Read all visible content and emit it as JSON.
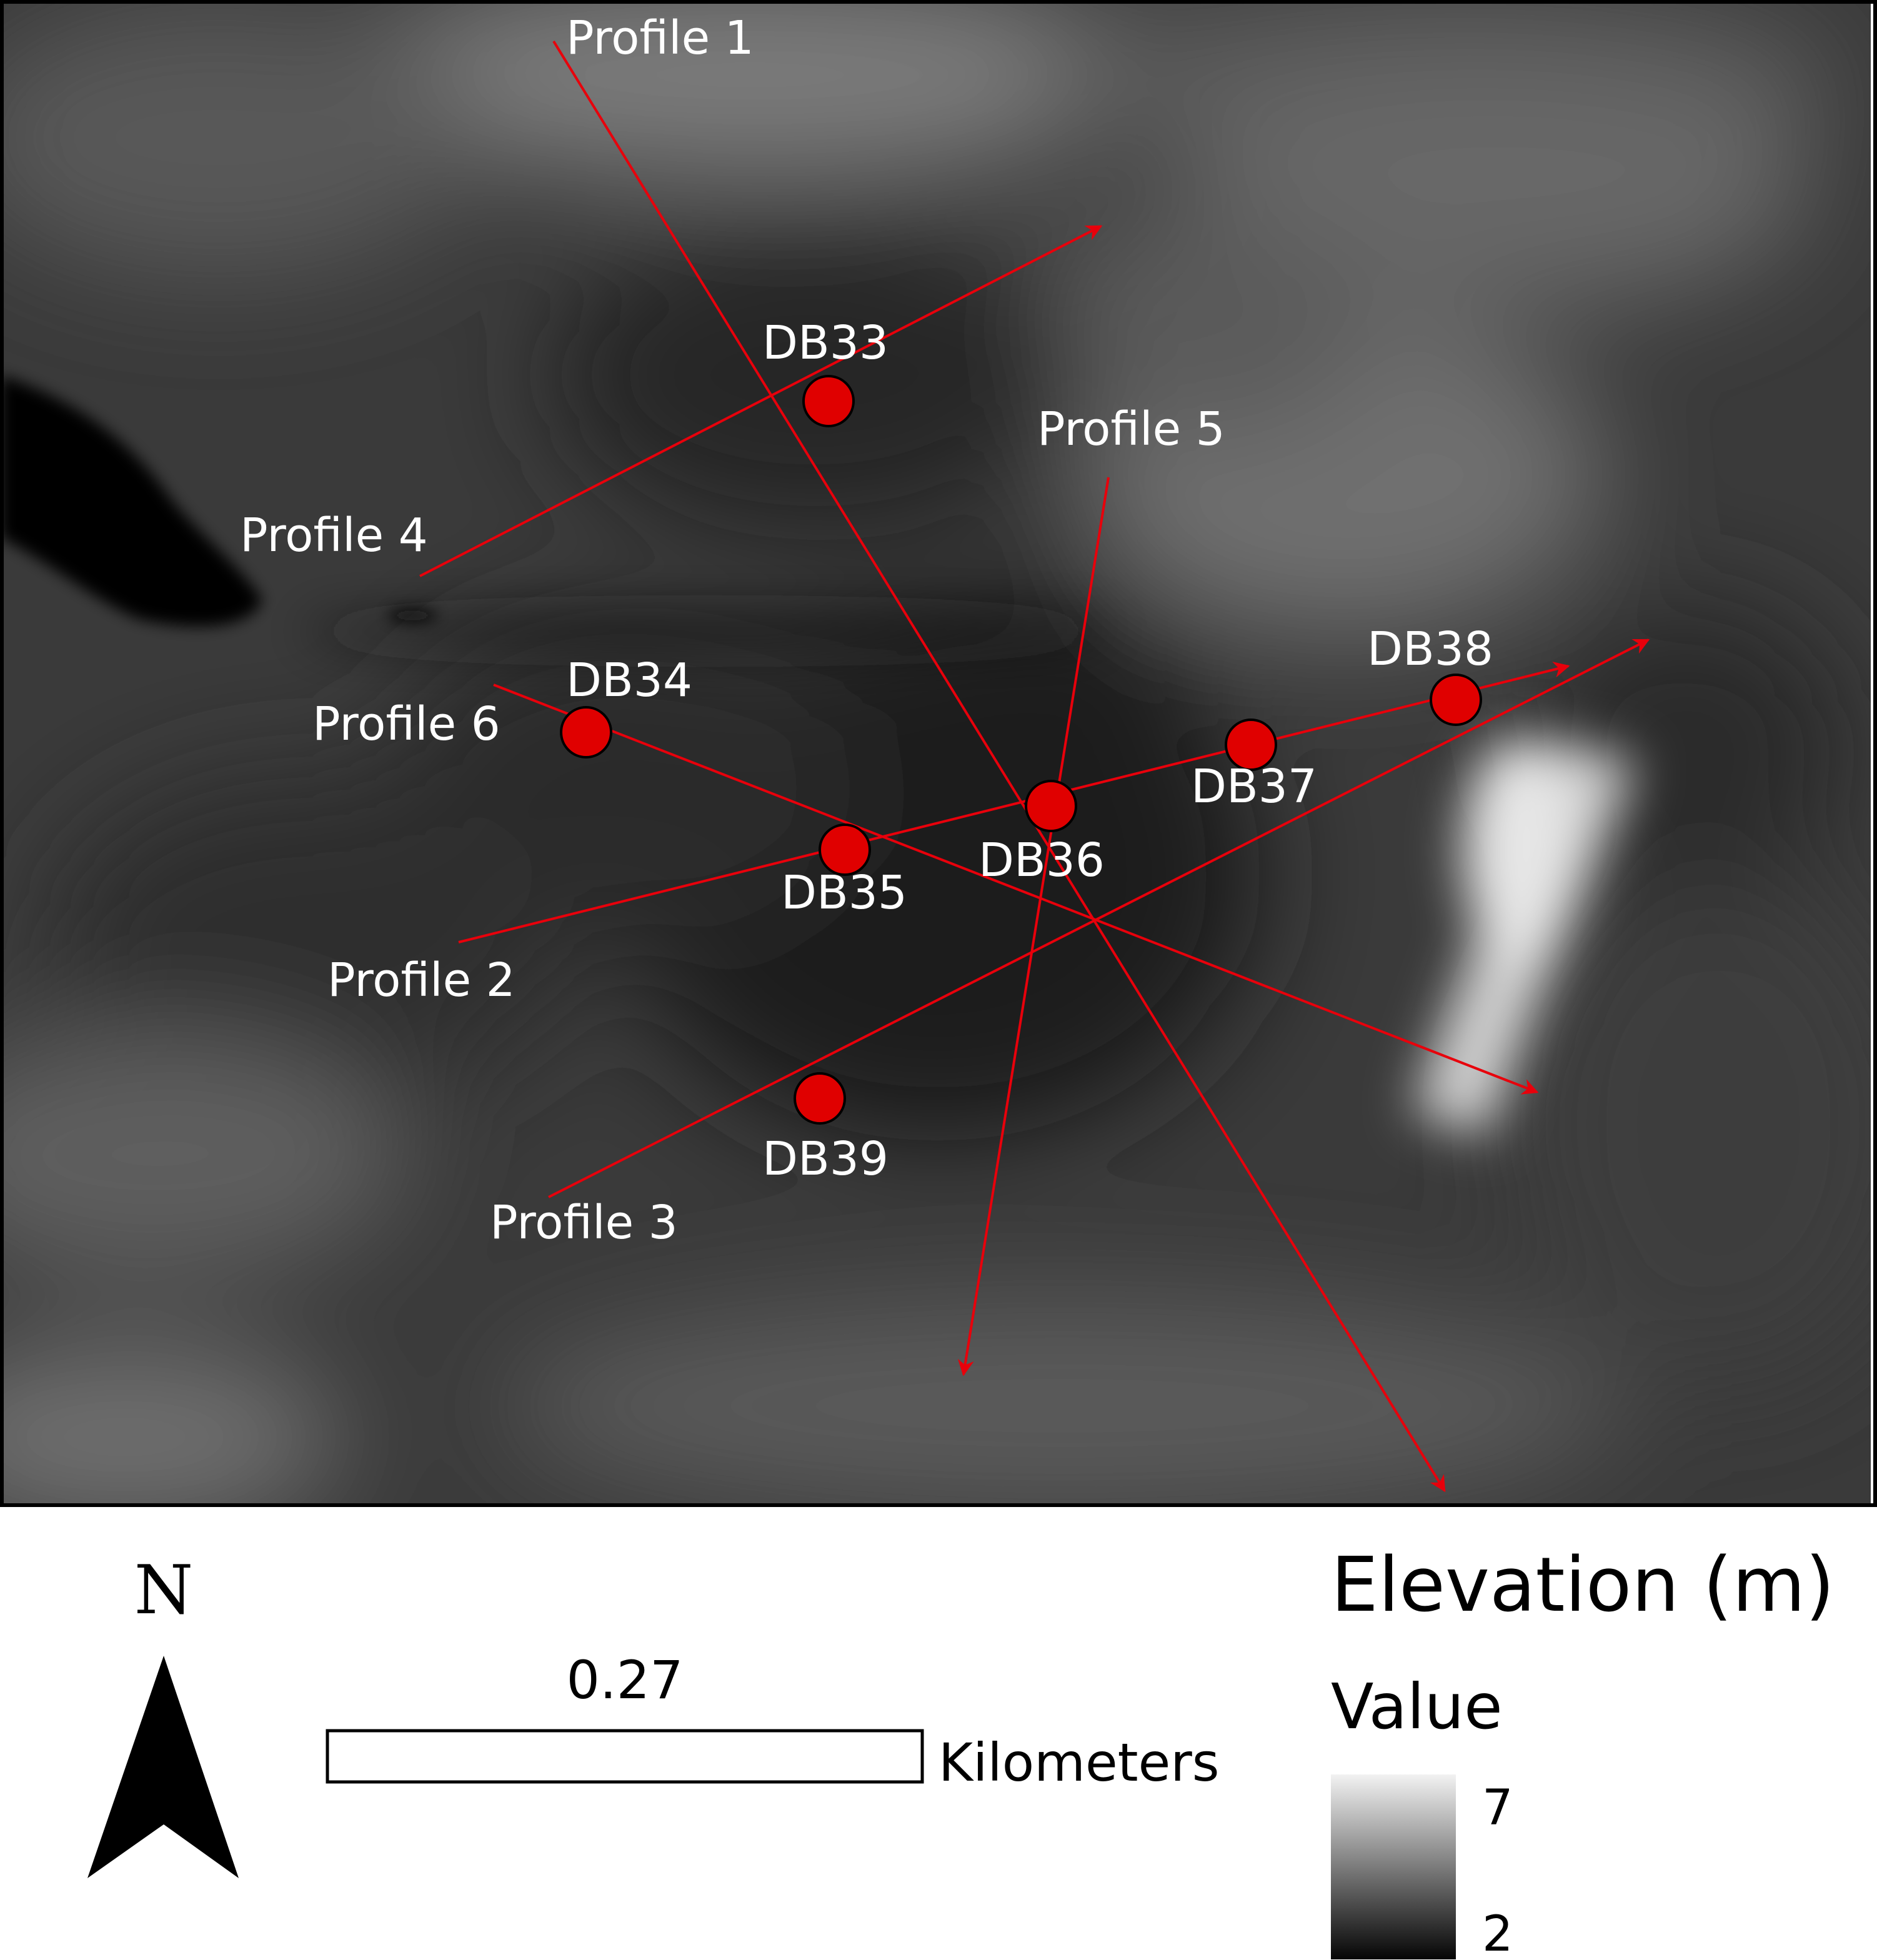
{
  "colors": {
    "profile_line": "#e8000b",
    "borehole_fill": "#e00000",
    "borehole_stroke": "#000000",
    "label_text": "#ffffff",
    "legend_text": "#000000",
    "elevation_low": "#050505",
    "elevation_high": "#f2f2f2"
  },
  "profiles": [
    {
      "id": "profile-1",
      "label": "Profile 1"
    },
    {
      "id": "profile-2",
      "label": "Profile 2"
    },
    {
      "id": "profile-3",
      "label": "Profile 3"
    },
    {
      "id": "profile-4",
      "label": "Profile 4"
    },
    {
      "id": "profile-5",
      "label": "Profile 5"
    },
    {
      "id": "profile-6",
      "label": "Profile 6"
    }
  ],
  "boreholes": [
    {
      "id": "db33",
      "label": "DB33"
    },
    {
      "id": "db34",
      "label": "DB34"
    },
    {
      "id": "db35",
      "label": "DB35"
    },
    {
      "id": "db36",
      "label": "DB36"
    },
    {
      "id": "db37",
      "label": "DB37"
    },
    {
      "id": "db38",
      "label": "DB38"
    },
    {
      "id": "db39",
      "label": "DB39"
    }
  ],
  "north_arrow": {
    "label": "N",
    "icon": "north-arrow-icon"
  },
  "scale_bar": {
    "value": "0.27",
    "unit": "Kilometers"
  },
  "legend": {
    "title": "Elevation (m)",
    "subtitle": "Value",
    "max_label": "7",
    "min_label": "2",
    "min_value": 2,
    "max_value": 7
  }
}
